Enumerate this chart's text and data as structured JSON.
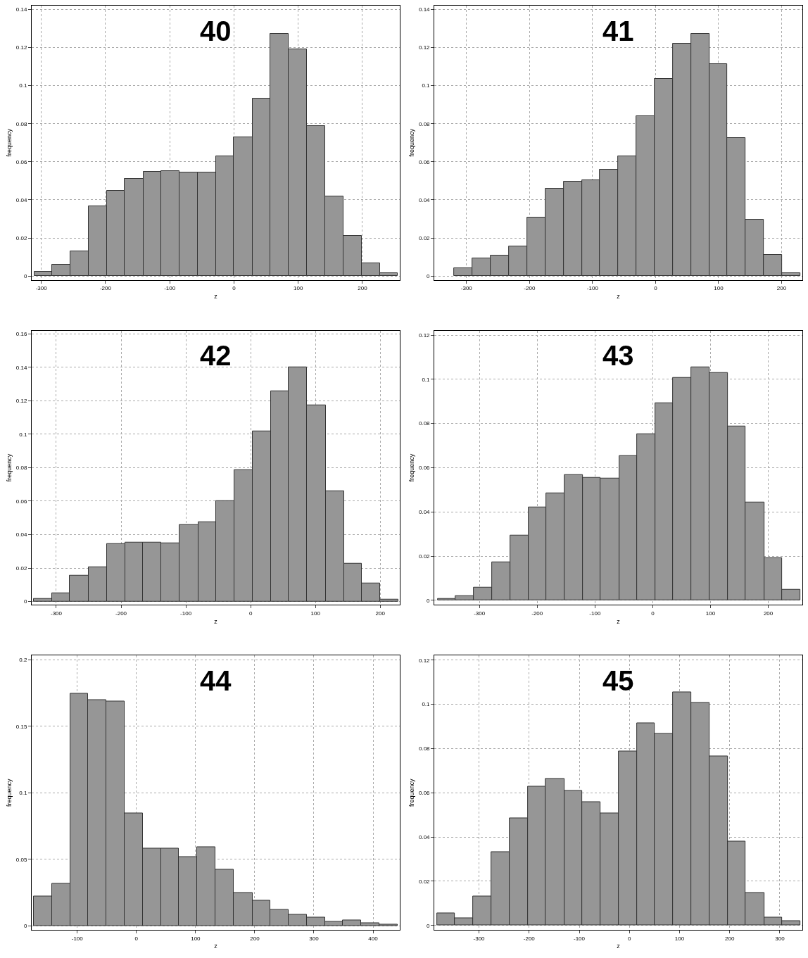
{
  "chart_data": [
    {
      "type": "histogram",
      "title": "40",
      "xlabel": "z",
      "ylabel": "frequency",
      "color": "#969696",
      "grid": true,
      "bins": [
        -311,
        -283,
        -255,
        -226,
        -198,
        -170,
        -141,
        -113,
        -85,
        -56,
        -28,
        0,
        29,
        57,
        85,
        114,
        142,
        170,
        199,
        227,
        255
      ],
      "values": [
        0.0023,
        0.0059,
        0.013,
        0.0367,
        0.0446,
        0.0509,
        0.0547,
        0.0552,
        0.0545,
        0.0545,
        0.063,
        0.0727,
        0.0932,
        0.1273,
        0.1192,
        0.0787,
        0.0417,
        0.0212,
        0.0068,
        0.0014
      ],
      "xlim": [
        -315,
        258
      ],
      "xticks": [
        -300,
        -200,
        -100,
        0,
        100,
        200
      ],
      "ylim": [
        -0.002,
        0.142
      ],
      "yticks": [
        0,
        0.02,
        0.04,
        0.06,
        0.08,
        0.1,
        0.12,
        0.14
      ]
    },
    {
      "type": "histogram",
      "title": "41",
      "xlabel": "z",
      "ylabel": "frequency",
      "color": "#969696",
      "grid": true,
      "bins": [
        -320,
        -291,
        -262,
        -233,
        -204,
        -175,
        -146,
        -117,
        -88,
        -59,
        -30,
        -1,
        28,
        57,
        86,
        114,
        143,
        172,
        201,
        230
      ],
      "values": [
        0.0041,
        0.0092,
        0.0106,
        0.0155,
        0.0307,
        0.0459,
        0.0495,
        0.0503,
        0.0559,
        0.0629,
        0.084,
        0.1034,
        0.1221,
        0.1273,
        0.1112,
        0.0724,
        0.0295,
        0.011,
        0.0015
      ],
      "xlim": [
        -351,
        233
      ],
      "xticks": [
        -300,
        -200,
        -100,
        0,
        100,
        200
      ],
      "ylim": [
        -0.002,
        0.142
      ],
      "yticks": [
        0,
        0.02,
        0.04,
        0.06,
        0.08,
        0.1,
        0.12,
        0.14
      ]
    },
    {
      "type": "histogram",
      "title": "42",
      "xlabel": "z",
      "ylabel": "frequency",
      "color": "#969696",
      "grid": true,
      "bins": [
        -335,
        -307,
        -279,
        -250,
        -222,
        -194,
        -166,
        -138,
        -110,
        -81,
        -53,
        -25,
        3,
        31,
        59,
        87,
        116,
        144,
        172,
        200,
        228
      ],
      "values": [
        0.0015,
        0.005,
        0.0153,
        0.0204,
        0.0344,
        0.0351,
        0.0351,
        0.0347,
        0.0458,
        0.0475,
        0.0602,
        0.0788,
        0.1017,
        0.1258,
        0.14,
        0.1173,
        0.066,
        0.0226,
        0.0109,
        0.0012
      ],
      "xlim": [
        -338,
        230
      ],
      "xticks": [
        -300,
        -200,
        -100,
        0,
        100,
        200
      ],
      "ylim": [
        -0.002,
        0.162
      ],
      "yticks": [
        0,
        0.02,
        0.04,
        0.06,
        0.08,
        0.1,
        0.12,
        0.14,
        0.16
      ]
    },
    {
      "type": "histogram",
      "title": "43",
      "xlabel": "z",
      "ylabel": "frequency",
      "color": "#969696",
      "grid": true,
      "bins": [
        -372,
        -341,
        -310,
        -278,
        -247,
        -215,
        -184,
        -153,
        -121,
        -90,
        -58,
        -27,
        4,
        35,
        67,
        98,
        130,
        161,
        193,
        224,
        256
      ],
      "values": [
        0.0008,
        0.002,
        0.0058,
        0.0173,
        0.0294,
        0.0421,
        0.0485,
        0.0569,
        0.0554,
        0.0551,
        0.0652,
        0.0753,
        0.0891,
        0.1007,
        0.1053,
        0.1028,
        0.0788,
        0.0443,
        0.0193,
        0.005
      ],
      "xlim": [
        -378,
        259
      ],
      "xticks": [
        -300,
        -200,
        -100,
        0,
        100,
        200
      ],
      "ylim": [
        -0.002,
        0.122
      ],
      "yticks": [
        0,
        0.02,
        0.04,
        0.06,
        0.08,
        0.1,
        0.12
      ]
    },
    {
      "type": "histogram",
      "title": "44",
      "xlabel": "z",
      "ylabel": "frequency",
      "color": "#969696",
      "grid": true,
      "bins": [
        -174,
        -143,
        -112,
        -82,
        -51,
        -20,
        11,
        42,
        72,
        103,
        134,
        165,
        196,
        226,
        257,
        288,
        319,
        349,
        380,
        411,
        442
      ],
      "values": [
        0.022,
        0.0319,
        0.1743,
        0.1697,
        0.1684,
        0.0846,
        0.058,
        0.058,
        0.0519,
        0.0589,
        0.0424,
        0.025,
        0.0189,
        0.0119,
        0.0083,
        0.0064,
        0.0029,
        0.0044,
        0.0022,
        0.0009
      ],
      "xlim": [
        -177,
        445
      ],
      "xticks": [
        -100,
        0,
        100,
        200,
        300,
        400
      ],
      "ylim": [
        -0.003,
        0.203
      ],
      "yticks": [
        0,
        0.05,
        0.1,
        0.15,
        0.2
      ]
    },
    {
      "type": "histogram",
      "title": "45",
      "xlabel": "z",
      "ylabel": "frequency",
      "color": "#969696",
      "grid": true,
      "bins": [
        -384,
        -348,
        -312,
        -275,
        -239,
        -203,
        -167,
        -130,
        -94,
        -58,
        -21,
        15,
        51,
        87,
        124,
        160,
        196,
        232,
        269,
        305,
        341
      ],
      "values": [
        0.0056,
        0.0032,
        0.013,
        0.0333,
        0.0486,
        0.0628,
        0.0662,
        0.061,
        0.0558,
        0.0508,
        0.0787,
        0.0914,
        0.0868,
        0.1055,
        0.1007,
        0.0764,
        0.038,
        0.0148,
        0.0037,
        0.002
      ],
      "xlim": [
        -389,
        345
      ],
      "xticks": [
        -300,
        -200,
        -100,
        0,
        100,
        200,
        300
      ],
      "ylim": [
        -0.002,
        0.122
      ],
      "yticks": [
        0,
        0.02,
        0.04,
        0.06,
        0.08,
        0.1,
        0.12
      ]
    }
  ]
}
